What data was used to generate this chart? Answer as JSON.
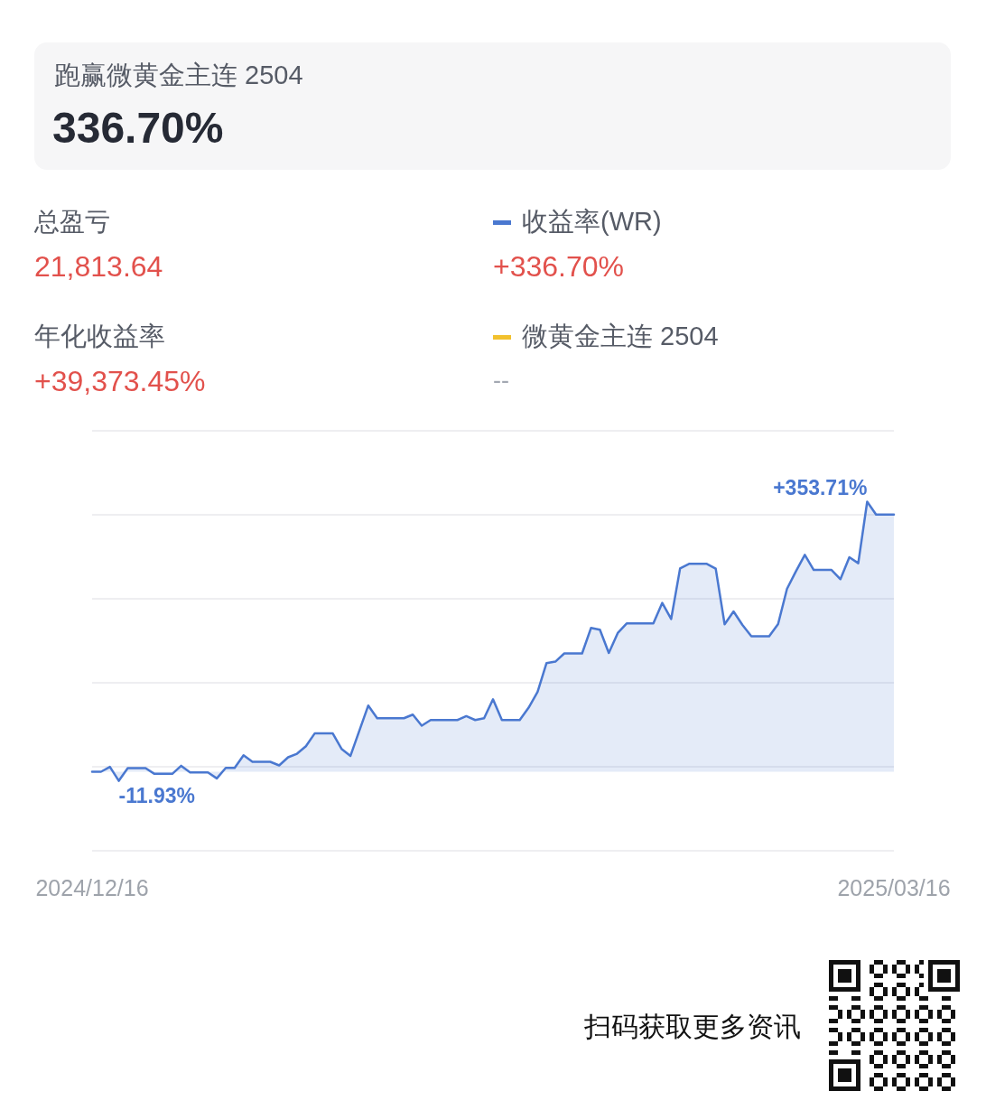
{
  "chart_data": {
    "type": "area",
    "title": "跑赢微黄金主连 2504",
    "subtitle": "336.70%",
    "annotations": [
      "总盈亏",
      "21,813.64",
      "年化收益率",
      "+39,373.45%",
      "+336.70%",
      "--",
      "扫码获取更多资讯"
    ],
    "x": [
      "2024-12-16",
      "2024-12-17",
      "2024-12-18",
      "2024-12-19",
      "2024-12-20",
      "2024-12-22",
      "2024-12-23",
      "2024-12-25",
      "2024-12-26",
      "2024-12-27",
      "2024-12-29",
      "2024-12-30",
      "2024-12-31",
      "2025-01-01",
      "2025-01-02",
      "2025-01-03",
      "2025-01-05",
      "2025-01-06",
      "2025-01-07",
      "2025-01-08",
      "2025-01-09",
      "2025-01-10",
      "2025-01-12",
      "2025-01-13",
      "2025-01-14",
      "2025-01-16",
      "2025-01-17",
      "2025-01-20",
      "2025-01-21",
      "2025-01-22",
      "2025-01-23",
      "2025-01-26",
      "2025-01-27",
      "2025-01-28",
      "2025-01-29",
      "2025-01-30",
      "2025-01-31",
      "2025-02-02",
      "2025-02-03",
      "2025-02-04",
      "2025-02-05",
      "2025-02-06",
      "2025-02-07",
      "2025-02-09",
      "2025-02-10",
      "2025-02-11",
      "2025-02-12",
      "2025-02-13",
      "2025-02-14",
      "2025-02-17",
      "2025-02-18",
      "2025-02-19",
      "2025-02-20",
      "2025-02-21",
      "2025-02-23",
      "2025-02-24",
      "2025-02-25",
      "2025-02-26",
      "2025-02-27",
      "2025-02-28",
      "2025-03-02",
      "2025-03-03",
      "2025-03-04",
      "2025-03-05",
      "2025-03-06",
      "2025-03-07",
      "2025-03-09",
      "2025-03-10",
      "2025-03-11",
      "2025-03-12",
      "2025-03-13",
      "2025-03-14",
      "2025-03-16"
    ],
    "series": [
      {
        "name": "收益率(WR)",
        "color": "#4a78d0",
        "values": [
          0,
          0,
          6.3,
          -11.93,
          4.7,
          4.7,
          -2.8,
          -2.8,
          7.8,
          -0.8,
          -0.8,
          -8.7,
          5.1,
          5.1,
          21.6,
          13.0,
          13.0,
          8.3,
          18.9,
          23.6,
          33.5,
          50.4,
          50.4,
          29.9,
          20.8,
          86.7,
          70.1,
          70.1,
          74.8,
          60.3,
          67.7,
          67.7,
          72.8,
          67.7,
          70.1,
          94.9,
          67.7,
          67.7,
          83.9,
          104.4,
          142.2,
          144.2,
          154.9,
          154.9,
          188.3,
          186.0,
          155.6,
          181.6,
          194.2,
          194.2,
          221.1,
          200.1,
          266.3,
          272.3,
          272.3,
          266.0,
          193.1,
          210.0,
          192.2,
          177.3,
          177.3,
          193.4,
          239.5,
          262.4,
          284.1,
          264.3,
          264.3,
          252.2,
          280.9,
          273.1,
          353.71,
          336.7,
          336.7
        ],
        "value_labels": [
          null,
          null,
          null,
          "-11.93%",
          null,
          null,
          null,
          null,
          null,
          null,
          null,
          null,
          null,
          null,
          null,
          null,
          null,
          null,
          null,
          null,
          null,
          null,
          null,
          null,
          null,
          null,
          null,
          null,
          null,
          null,
          null,
          null,
          null,
          null,
          null,
          null,
          null,
          null,
          null,
          null,
          null,
          null,
          null,
          null,
          null,
          null,
          null,
          null,
          null,
          null,
          null,
          null,
          null,
          null,
          null,
          null,
          null,
          null,
          null,
          null,
          null,
          null,
          null,
          null,
          null,
          null,
          null,
          null,
          null,
          null,
          "+353.71%",
          null,
          null
        ]
      },
      {
        "name": "微黄金主连 2504",
        "color": "#f2c12e",
        "values": [
          null,
          null,
          null,
          null,
          null,
          null,
          null,
          null,
          null,
          null,
          null,
          null,
          null,
          null,
          null,
          null,
          null,
          null,
          null,
          null,
          null,
          null,
          null,
          null,
          null,
          null,
          null,
          null,
          null,
          null,
          null,
          null,
          null,
          null,
          null,
          null,
          null,
          null,
          null,
          null,
          null,
          null,
          null,
          null,
          null,
          null,
          null,
          null,
          null,
          null,
          null,
          null,
          null,
          null,
          null,
          null,
          null,
          null,
          null,
          null,
          null,
          null,
          null,
          null,
          null,
          null,
          null,
          null,
          null,
          null,
          null,
          null,
          null
        ]
      }
    ],
    "xlim": [
      "2024-12-16",
      "2025-03-16"
    ],
    "xticks": [
      {
        "value": "2024-12-16",
        "label": "2024/12/16"
      },
      {
        "value": "2025-03-16",
        "label": "2025/03/16"
      }
    ],
    "ylim": [
      -103.5,
      446.5
    ],
    "yticks": [
      {
        "value": -103.5,
        "label": null
      },
      {
        "value": 6.5,
        "label": null
      },
      {
        "value": 116.5,
        "label": null
      },
      {
        "value": 226.5,
        "label": null
      },
      {
        "value": 336.5,
        "label": null
      },
      {
        "value": 446.5,
        "label": null
      }
    ],
    "grid": "y",
    "legend": "top right",
    "tick_labels": "x",
    "marker": "none"
  }
}
